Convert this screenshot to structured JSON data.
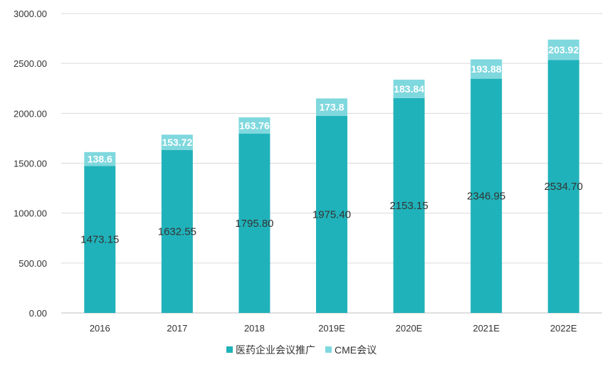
{
  "chart_data": {
    "type": "bar",
    "stacked": true,
    "categories": [
      "2016",
      "2017",
      "2018",
      "2019E",
      "2020E",
      "2021E",
      "2022E"
    ],
    "series": [
      {
        "name": "医药企业会议推广",
        "values": [
          1473.15,
          1632.55,
          1795.8,
          1975.4,
          2153.15,
          2346.95,
          2534.7
        ],
        "labels": [
          "1473.15",
          "1632.55",
          "1795.80",
          "1975.40",
          "2153.15",
          "2346.95",
          "2534.70"
        ],
        "color": "#20B2BA"
      },
      {
        "name": "CME会议",
        "values": [
          138.6,
          153.72,
          163.76,
          173.8,
          183.84,
          193.88,
          203.92
        ],
        "labels": [
          "138.6",
          "153.72",
          "163.76",
          "173.8",
          "183.84",
          "193.88",
          "203.92"
        ],
        "color": "#7FD8DE"
      }
    ],
    "y_ticks": [
      "0.00",
      "500.00",
      "1000.00",
      "1500.00",
      "2000.00",
      "2500.00",
      "3000.00"
    ],
    "ylim": [
      0,
      3000
    ],
    "grid": true,
    "legend_position": "bottom",
    "title": "",
    "xlabel": "",
    "ylabel": ""
  }
}
